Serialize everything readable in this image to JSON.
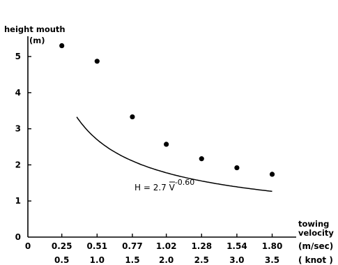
{
  "chart_data": {
    "type": "scatter",
    "ylabel_line1": "height mouth",
    "ylabel_line2": "(m)",
    "xlabel_line1": "towing",
    "xlabel_line2": "velocity",
    "x_unit_primary": "(m/sec)",
    "x_unit_secondary": "( knot )",
    "x_tick_origin": "0",
    "x_ticks_primary": [
      "0.25",
      "0.51",
      "0.77",
      "1.02",
      "1.28",
      "1.54",
      "1.80"
    ],
    "x_ticks_secondary": [
      "0.5",
      "1.0",
      "1.5",
      "2.0",
      "2.5",
      "3.0",
      "3.5"
    ],
    "y_ticks": [
      "0",
      "1",
      "2",
      "3",
      "4",
      "5"
    ],
    "xlim": [
      0,
      1.9
    ],
    "ylim": [
      0,
      5.6
    ],
    "series": [
      {
        "marker": "filled-circle",
        "points": [
          {
            "x": 0.25,
            "y": 5.3
          },
          {
            "x": 0.51,
            "y": 4.87
          },
          {
            "x": 0.77,
            "y": 3.33
          },
          {
            "x": 1.02,
            "y": 2.57
          },
          {
            "x": 1.28,
            "y": 2.17
          },
          {
            "x": 1.54,
            "y": 1.92
          },
          {
            "x": 1.8,
            "y": 1.74
          }
        ]
      }
    ],
    "fit_curve": {
      "coefficient": 2.7,
      "exponent": -0.6,
      "x_range": [
        0.36,
        1.8
      ]
    },
    "annotation": {
      "prefix": "H = 2.7 V",
      "exponent_text": "-0.60"
    }
  }
}
